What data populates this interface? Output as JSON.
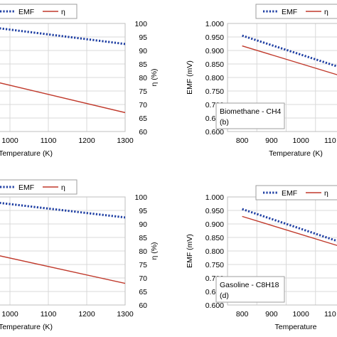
{
  "chart_data": [
    {
      "type": "line",
      "panel": "top-left",
      "label": "",
      "xlabel": "Temperature (K)",
      "ylabel": "",
      "y2label": "η (%)",
      "xlim": [
        900,
        1300
      ],
      "y2lim": [
        60,
        100
      ],
      "xticks": [
        "1000",
        "1100",
        "1200",
        "1300"
      ],
      "y2ticks": [
        "100",
        "95",
        "90",
        "85",
        "80",
        "75",
        "70",
        "65",
        "60"
      ],
      "legend": "top-left",
      "grid": true,
      "series": [
        {
          "name": "EMF",
          "axis": "left",
          "style": "dotted",
          "color": "#1f3fa3",
          "x": [
            900,
            1300
          ],
          "y": [
            0.995,
            0.924
          ]
        },
        {
          "name": "η",
          "axis": "right",
          "style": "solid",
          "color": "#c0392b",
          "x": [
            900,
            1300
          ],
          "y": [
            80.5,
            67
          ]
        }
      ]
    },
    {
      "type": "line",
      "panel": "top-right",
      "label": "Biomethane - CH4",
      "tag": "(b)",
      "xlabel": "Temperature (K)",
      "ylabel": "EMF (mV)",
      "xlim": [
        750,
        1150
      ],
      "ylim": [
        0.6,
        1.0
      ],
      "xticks": [
        "800",
        "900",
        "1000",
        "110"
      ],
      "yticks": [
        "1.000",
        "0.950",
        "0.900",
        "0.850",
        "0.800",
        "0.750",
        "0.700",
        "0.650",
        "0.600"
      ],
      "legend": "top-right",
      "grid": true,
      "series": [
        {
          "name": "EMF",
          "axis": "left",
          "style": "dotted",
          "color": "#1f3fa3",
          "x": [
            800,
            1170
          ],
          "y": [
            0.955,
            0.825
          ]
        },
        {
          "name": "η",
          "axis": "left",
          "style": "solid",
          "color": "#c0392b",
          "x": [
            800,
            1170
          ],
          "y": [
            0.917,
            0.795
          ]
        }
      ]
    },
    {
      "type": "line",
      "panel": "bottom-left",
      "label": "",
      "xlabel": "Temperature (K)",
      "ylabel": "",
      "y2label": "η (%)",
      "xlim": [
        900,
        1300
      ],
      "y2lim": [
        60,
        100
      ],
      "xticks": [
        "1000",
        "1100",
        "1200",
        "1300"
      ],
      "y2ticks": [
        "100",
        "95",
        "90",
        "85",
        "80",
        "75",
        "70",
        "65",
        "60"
      ],
      "legend": "top-left",
      "grid": true,
      "series": [
        {
          "name": "EMF",
          "axis": "left",
          "style": "dotted",
          "color": "#1f3fa3",
          "x": [
            900,
            1300
          ],
          "y": [
            0.99,
            0.924
          ]
        },
        {
          "name": "η",
          "axis": "right",
          "style": "solid",
          "color": "#c0392b",
          "x": [
            900,
            1300
          ],
          "y": [
            80.5,
            68
          ]
        }
      ]
    },
    {
      "type": "line",
      "panel": "bottom-right",
      "label": "Gasoline - C8H18",
      "tag": "(d)",
      "xlabel": "Temperature",
      "ylabel": "EMF (mV)",
      "xlim": [
        750,
        1150
      ],
      "ylim": [
        0.6,
        1.0
      ],
      "xticks": [
        "800",
        "900",
        "1000",
        "110"
      ],
      "yticks": [
        "1.000",
        "0.950",
        "0.900",
        "0.850",
        "0.800",
        "0.750",
        "0.700",
        "0.650",
        "0.600"
      ],
      "legend": "top-right",
      "grid": true,
      "series": [
        {
          "name": "EMF",
          "axis": "left",
          "style": "dotted",
          "color": "#1f3fa3",
          "x": [
            800,
            1170
          ],
          "y": [
            0.955,
            0.82
          ]
        },
        {
          "name": "η",
          "axis": "left",
          "style": "solid",
          "color": "#c0392b",
          "x": [
            800,
            1170
          ],
          "y": [
            0.928,
            0.805
          ]
        }
      ]
    }
  ]
}
